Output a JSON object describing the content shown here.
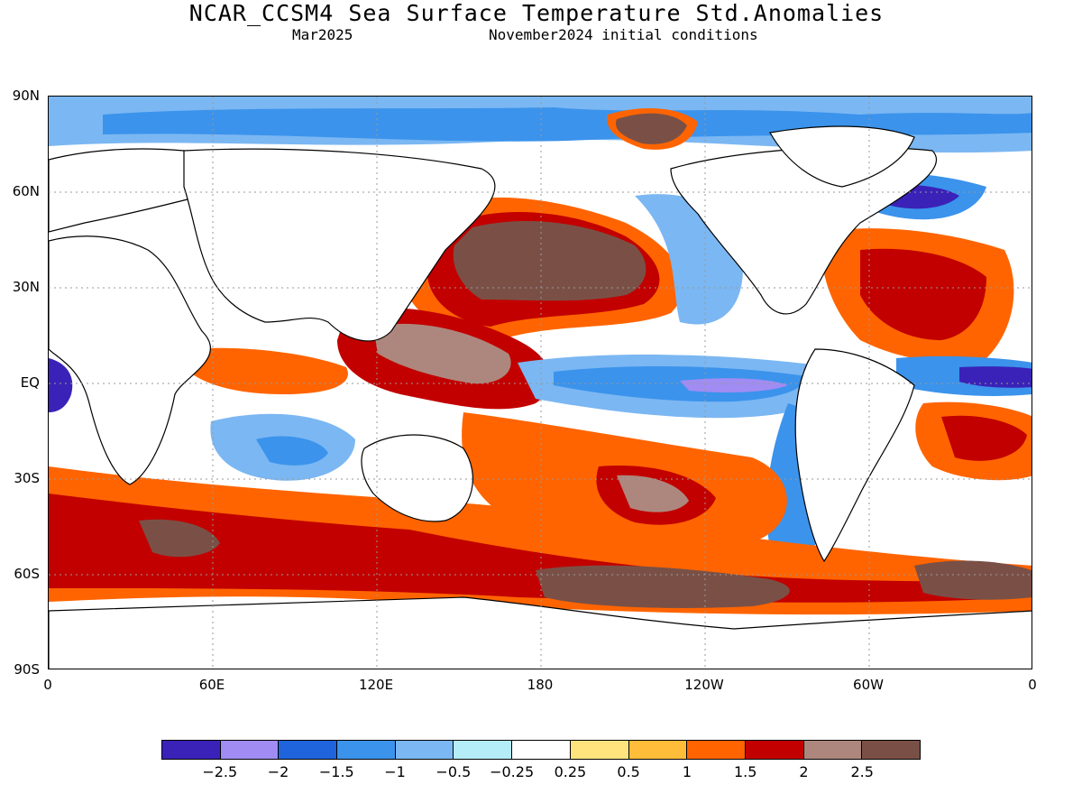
{
  "title": "NCAR_CCSM4 Sea Surface Temperature Std.Anomalies",
  "subtitle_left": "Mar2025",
  "subtitle_right": "November2024 initial conditions",
  "lat_labels": [
    "90N",
    "60N",
    "30N",
    "EQ",
    "30S",
    "60S",
    "90S"
  ],
  "lon_labels": [
    "0",
    "60E",
    "120E",
    "180",
    "120W",
    "60W",
    "0"
  ],
  "legend": {
    "colors": [
      "#3a22b8",
      "#a08cf2",
      "#1f64dc",
      "#3b93ec",
      "#7bb7f2",
      "#b4ecf8",
      "#ffffff",
      "#ffe47e",
      "#ffbd3a",
      "#ff6400",
      "#c20000",
      "#ad877d",
      "#7a5046"
    ],
    "labels": [
      "−2.5",
      "−2",
      "−1.5",
      "−1",
      "−0.5",
      "−0.25",
      "0.25",
      "0.5",
      "1",
      "1.5",
      "2",
      "2.5"
    ]
  }
}
